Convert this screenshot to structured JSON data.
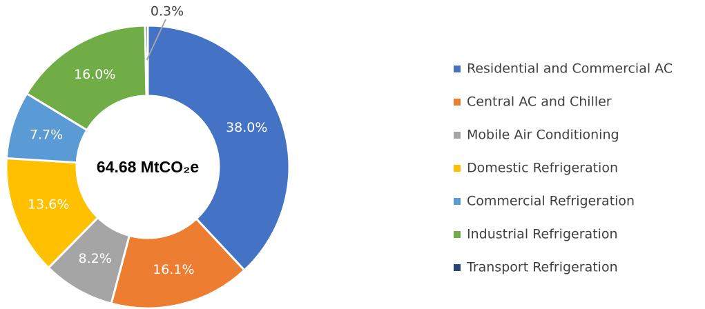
{
  "chart_data": {
    "type": "pie",
    "center_label": "64.68 MtCO₂e",
    "categories": [
      "Residential and Commercial AC",
      "Central AC and Chiller",
      "Mobile Air Conditioning",
      "Domestic Refrigeration",
      "Commercial Refrigeration",
      "Industrial Refrigeration",
      "Transport Refrigeration"
    ],
    "values": [
      38.0,
      16.1,
      8.2,
      13.6,
      7.7,
      16.0,
      0.3
    ],
    "value_labels": [
      "38.0%",
      "16.1%",
      "8.2%",
      "13.6%",
      "7.7%",
      "16.0%",
      "0.3%"
    ],
    "colors": [
      "#4472c4",
      "#ed7d31",
      "#a5a5a5",
      "#ffc000",
      "#5b9bd5",
      "#70ad47",
      "#264478"
    ],
    "legend": "right"
  }
}
